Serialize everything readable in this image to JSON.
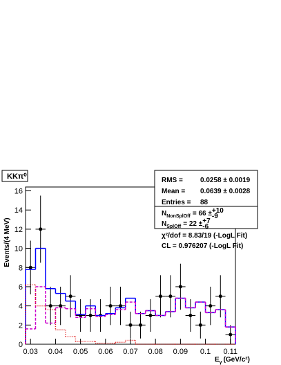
{
  "chart_data": {
    "type": "histogram",
    "title": "KKπ⁰",
    "y_label": "Events/(4 MeV)",
    "x_label": {
      "symbol": "E",
      "sub": "γ",
      "unit": "(GeV/c²)"
    },
    "bins": [
      0.028,
      0.032,
      0.036,
      0.04,
      0.044,
      0.048,
      0.052,
      0.056,
      0.06,
      0.064,
      0.068,
      0.072,
      0.076,
      0.08,
      0.084,
      0.088,
      0.092,
      0.096,
      0.1,
      0.104,
      0.108,
      0.112
    ],
    "series": [
      {
        "style": "points",
        "color": "#000000",
        "values": [
          8,
          12,
          4,
          4,
          5,
          3,
          3,
          3,
          4,
          4,
          2,
          2,
          3,
          5,
          5,
          6,
          3,
          2,
          4,
          5,
          1
        ],
        "errors": [
          2.8,
          3.5,
          2,
          2,
          2.2,
          1.7,
          1.7,
          1.7,
          2,
          2,
          1.4,
          1.4,
          1.7,
          2.2,
          2.2,
          2.4,
          1.7,
          1.4,
          2,
          2.2,
          1
        ]
      },
      {
        "style": "solid",
        "color": "#0000ff",
        "values": [
          7.8,
          10,
          5.8,
          5.3,
          4.5,
          3.1,
          4,
          3,
          3.2,
          3.8,
          4.8,
          3.2,
          3.5,
          3,
          3.4,
          4.8,
          3.8,
          4.4,
          3.3,
          3.6,
          1.8
        ]
      },
      {
        "style": "dashed",
        "color": "#cc00cc",
        "values": [
          1.6,
          6,
          2.2,
          3.8,
          3.7,
          2.8,
          3.7,
          2.9,
          3.1,
          3.6,
          4.4,
          3.2,
          3.5,
          3,
          3.4,
          4.8,
          3.8,
          4.4,
          3.3,
          3.6,
          1.8
        ]
      },
      {
        "style": "dotted",
        "color": "#dd0000",
        "values": [
          6.2,
          4,
          3.6,
          1.5,
          0.8,
          0.3,
          0.3,
          0.1,
          0.1,
          0.2,
          0.4,
          0,
          0,
          0,
          0,
          0,
          0,
          0,
          0,
          0,
          0
        ]
      }
    ],
    "xlim": [
      0.028,
      0.112
    ],
    "ylim": [
      0,
      16.4
    ],
    "xticks": [
      0.03,
      0.04,
      0.05,
      0.06,
      0.07,
      0.08,
      0.09,
      0.1,
      0.11
    ],
    "yticks": [
      0,
      2,
      4,
      6,
      8,
      10,
      12,
      14,
      16
    ],
    "stats": [
      {
        "label": "RMS =",
        "value": "0.0258 ± 0.0019"
      },
      {
        "label": "Mean =",
        "value": "0.0639 ± 0.0028"
      },
      {
        "label": "Entries =",
        "value": "88"
      }
    ],
    "yields": [
      {
        "symbol": "N",
        "sub": "NonSplOff",
        "value": "= 66 ±",
        "up": "+10",
        "down": "-9"
      },
      {
        "symbol": "N",
        "sub": "SplOff",
        "value": "= 22 ±",
        "up": "+7",
        "down": "-6"
      }
    ],
    "fit_info": [
      "χ²/dof = 8.83/19 (-LogL Fit)",
      "CL = 0.976207 (-LogL Fit)"
    ]
  }
}
